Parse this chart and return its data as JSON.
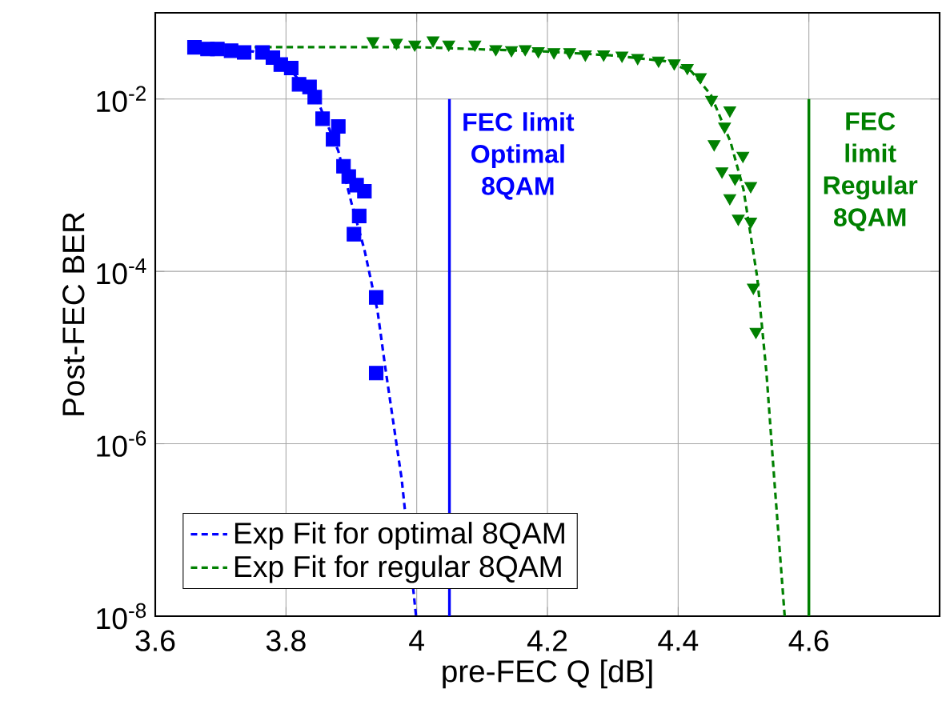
{
  "chart_data": {
    "type": "scatter",
    "xlabel": "pre-FEC Q [dB]",
    "ylabel": "Post-FEC BER",
    "xlim": [
      3.6,
      4.8
    ],
    "ylim": [
      1e-08,
      0.1
    ],
    "log": "y",
    "grid": true,
    "legend": "bottom left",
    "xticks": [
      3.6,
      3.8,
      4,
      4.2,
      4.4,
      4.6
    ],
    "yticks": [
      {
        "value": 1e-08,
        "label": "10$^{-8}$"
      },
      {
        "value": 1e-06,
        "label": "10$^{-6}$"
      },
      {
        "value": 0.0001,
        "label": "10$^{-4}$"
      },
      {
        "value": 0.01,
        "label": "10$^{-2}$"
      }
    ],
    "series": [
      {
        "type": "line",
        "name": "Exp Fit for optimal 8QAM",
        "color": "#0000ff",
        "line_style": "dashed",
        "marker": "none",
        "x": [
          3.66,
          3.75,
          3.8,
          3.85,
          3.88,
          3.9,
          3.92,
          3.94,
          3.952,
          3.969,
          3.977,
          3.999
        ],
        "values": [
          0.0398,
          0.0355,
          0.0251,
          0.0089,
          0.0025,
          0.00063,
          0.000178,
          3.5e-05,
          7.6e-06,
          1e-06,
          3.9e-07,
          1e-08
        ]
      },
      {
        "type": "line",
        "name": "Exp Fit for regular 8QAM",
        "color": "#008000",
        "line_style": "dashed",
        "marker": "none",
        "x": [
          3.752,
          4.0,
          4.2,
          4.3,
          4.38,
          4.42,
          4.45,
          4.48,
          4.5,
          4.521,
          4.535,
          4.547,
          4.563
        ],
        "values": [
          0.04,
          0.04,
          0.0355,
          0.032,
          0.0275,
          0.021,
          0.0112,
          0.0032,
          0.00089,
          8.5e-05,
          6.8e-06,
          3.9e-07,
          1e-08
        ]
      },
      {
        "color": "#0000ff",
        "marker": "square",
        "x": [
          3.66,
          3.68,
          3.695,
          3.716,
          3.736,
          3.764,
          3.78,
          3.792,
          3.808,
          3.82,
          3.836,
          3.844,
          3.856,
          3.88,
          3.872,
          3.888,
          3.896,
          3.908,
          3.92,
          3.912,
          3.904,
          3.938,
          3.938
        ],
        "values": [
          0.0398,
          0.038,
          0.038,
          0.0363,
          0.0347,
          0.0347,
          0.0302,
          0.0251,
          0.0229,
          0.0148,
          0.0138,
          0.0105,
          0.0059,
          0.0048,
          0.0034,
          0.00166,
          0.00126,
          0.001,
          0.00085,
          0.00044,
          0.00027,
          5e-05,
          6.6e-06
        ]
      },
      {
        "color": "#008000",
        "marker": "triangle",
        "x": [
          3.933,
          3.969,
          3.997,
          4.025,
          4.049,
          4.089,
          4.121,
          4.145,
          4.166,
          4.186,
          4.21,
          4.234,
          4.258,
          4.286,
          4.314,
          4.338,
          4.37,
          4.394,
          4.414,
          4.434,
          4.451,
          4.479,
          4.471,
          4.455,
          4.499,
          4.467,
          4.487,
          4.511,
          4.479,
          4.492,
          4.511,
          4.515,
          4.519
        ],
        "values": [
          0.047,
          0.045,
          0.043,
          0.048,
          0.043,
          0.043,
          0.038,
          0.037,
          0.038,
          0.036,
          0.035,
          0.035,
          0.033,
          0.033,
          0.032,
          0.03,
          0.028,
          0.026,
          0.023,
          0.018,
          0.0098,
          0.0074,
          0.0048,
          0.003,
          0.0022,
          0.00145,
          0.0012,
          0.00098,
          0.00071,
          0.00041,
          0.00038,
          6.5e-05,
          2e-05
        ]
      }
    ],
    "ref_lines": [
      {
        "axis": "x",
        "value": 4.05,
        "label": "FEC limit Optimal 8QAM",
        "color": "#0000ff"
      },
      {
        "axis": "x",
        "value": 4.6,
        "label": "FEC limit Regular 8QAM",
        "color": "#008000"
      }
    ]
  }
}
